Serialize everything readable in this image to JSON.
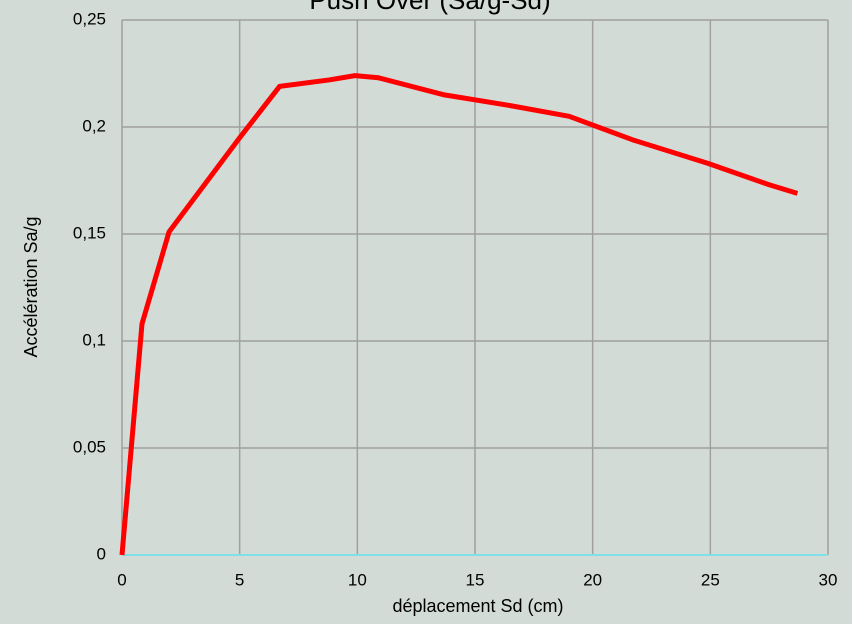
{
  "chart_data": {
    "type": "line",
    "title": "Push Over (Sa/g-Sd)",
    "x_label": "déplacement Sd (cm)",
    "y_label": "Accélération Sa/g",
    "x": [
      0,
      0.85,
      2.0,
      5.0,
      6.7,
      8.8,
      9.9,
      10.9,
      13.7,
      16.5,
      19.0,
      21.7,
      24.9,
      27.5,
      28.7
    ],
    "series": [
      {
        "name": "Push Over",
        "color": "#ff0000",
        "values": [
          0,
          0.108,
          0.151,
          0.195,
          0.219,
          0.222,
          0.224,
          0.223,
          0.215,
          0.21,
          0.205,
          0.194,
          0.183,
          0.173,
          0.169
        ]
      }
    ],
    "xlim": [
      0,
      30
    ],
    "xticks": [
      0,
      5,
      10,
      15,
      20,
      25,
      30
    ],
    "ylim": [
      0,
      0.25
    ],
    "yticks": [
      0,
      {
        "value": 0.05,
        "label": "0,05"
      },
      {
        "value": 0.1,
        "label": "0,1"
      },
      {
        "value": 0.15,
        "label": "0,15"
      },
      {
        "value": 0.2,
        "label": "0,2"
      },
      {
        "value": 0.25,
        "label": "0,25"
      }
    ],
    "grid": true
  }
}
